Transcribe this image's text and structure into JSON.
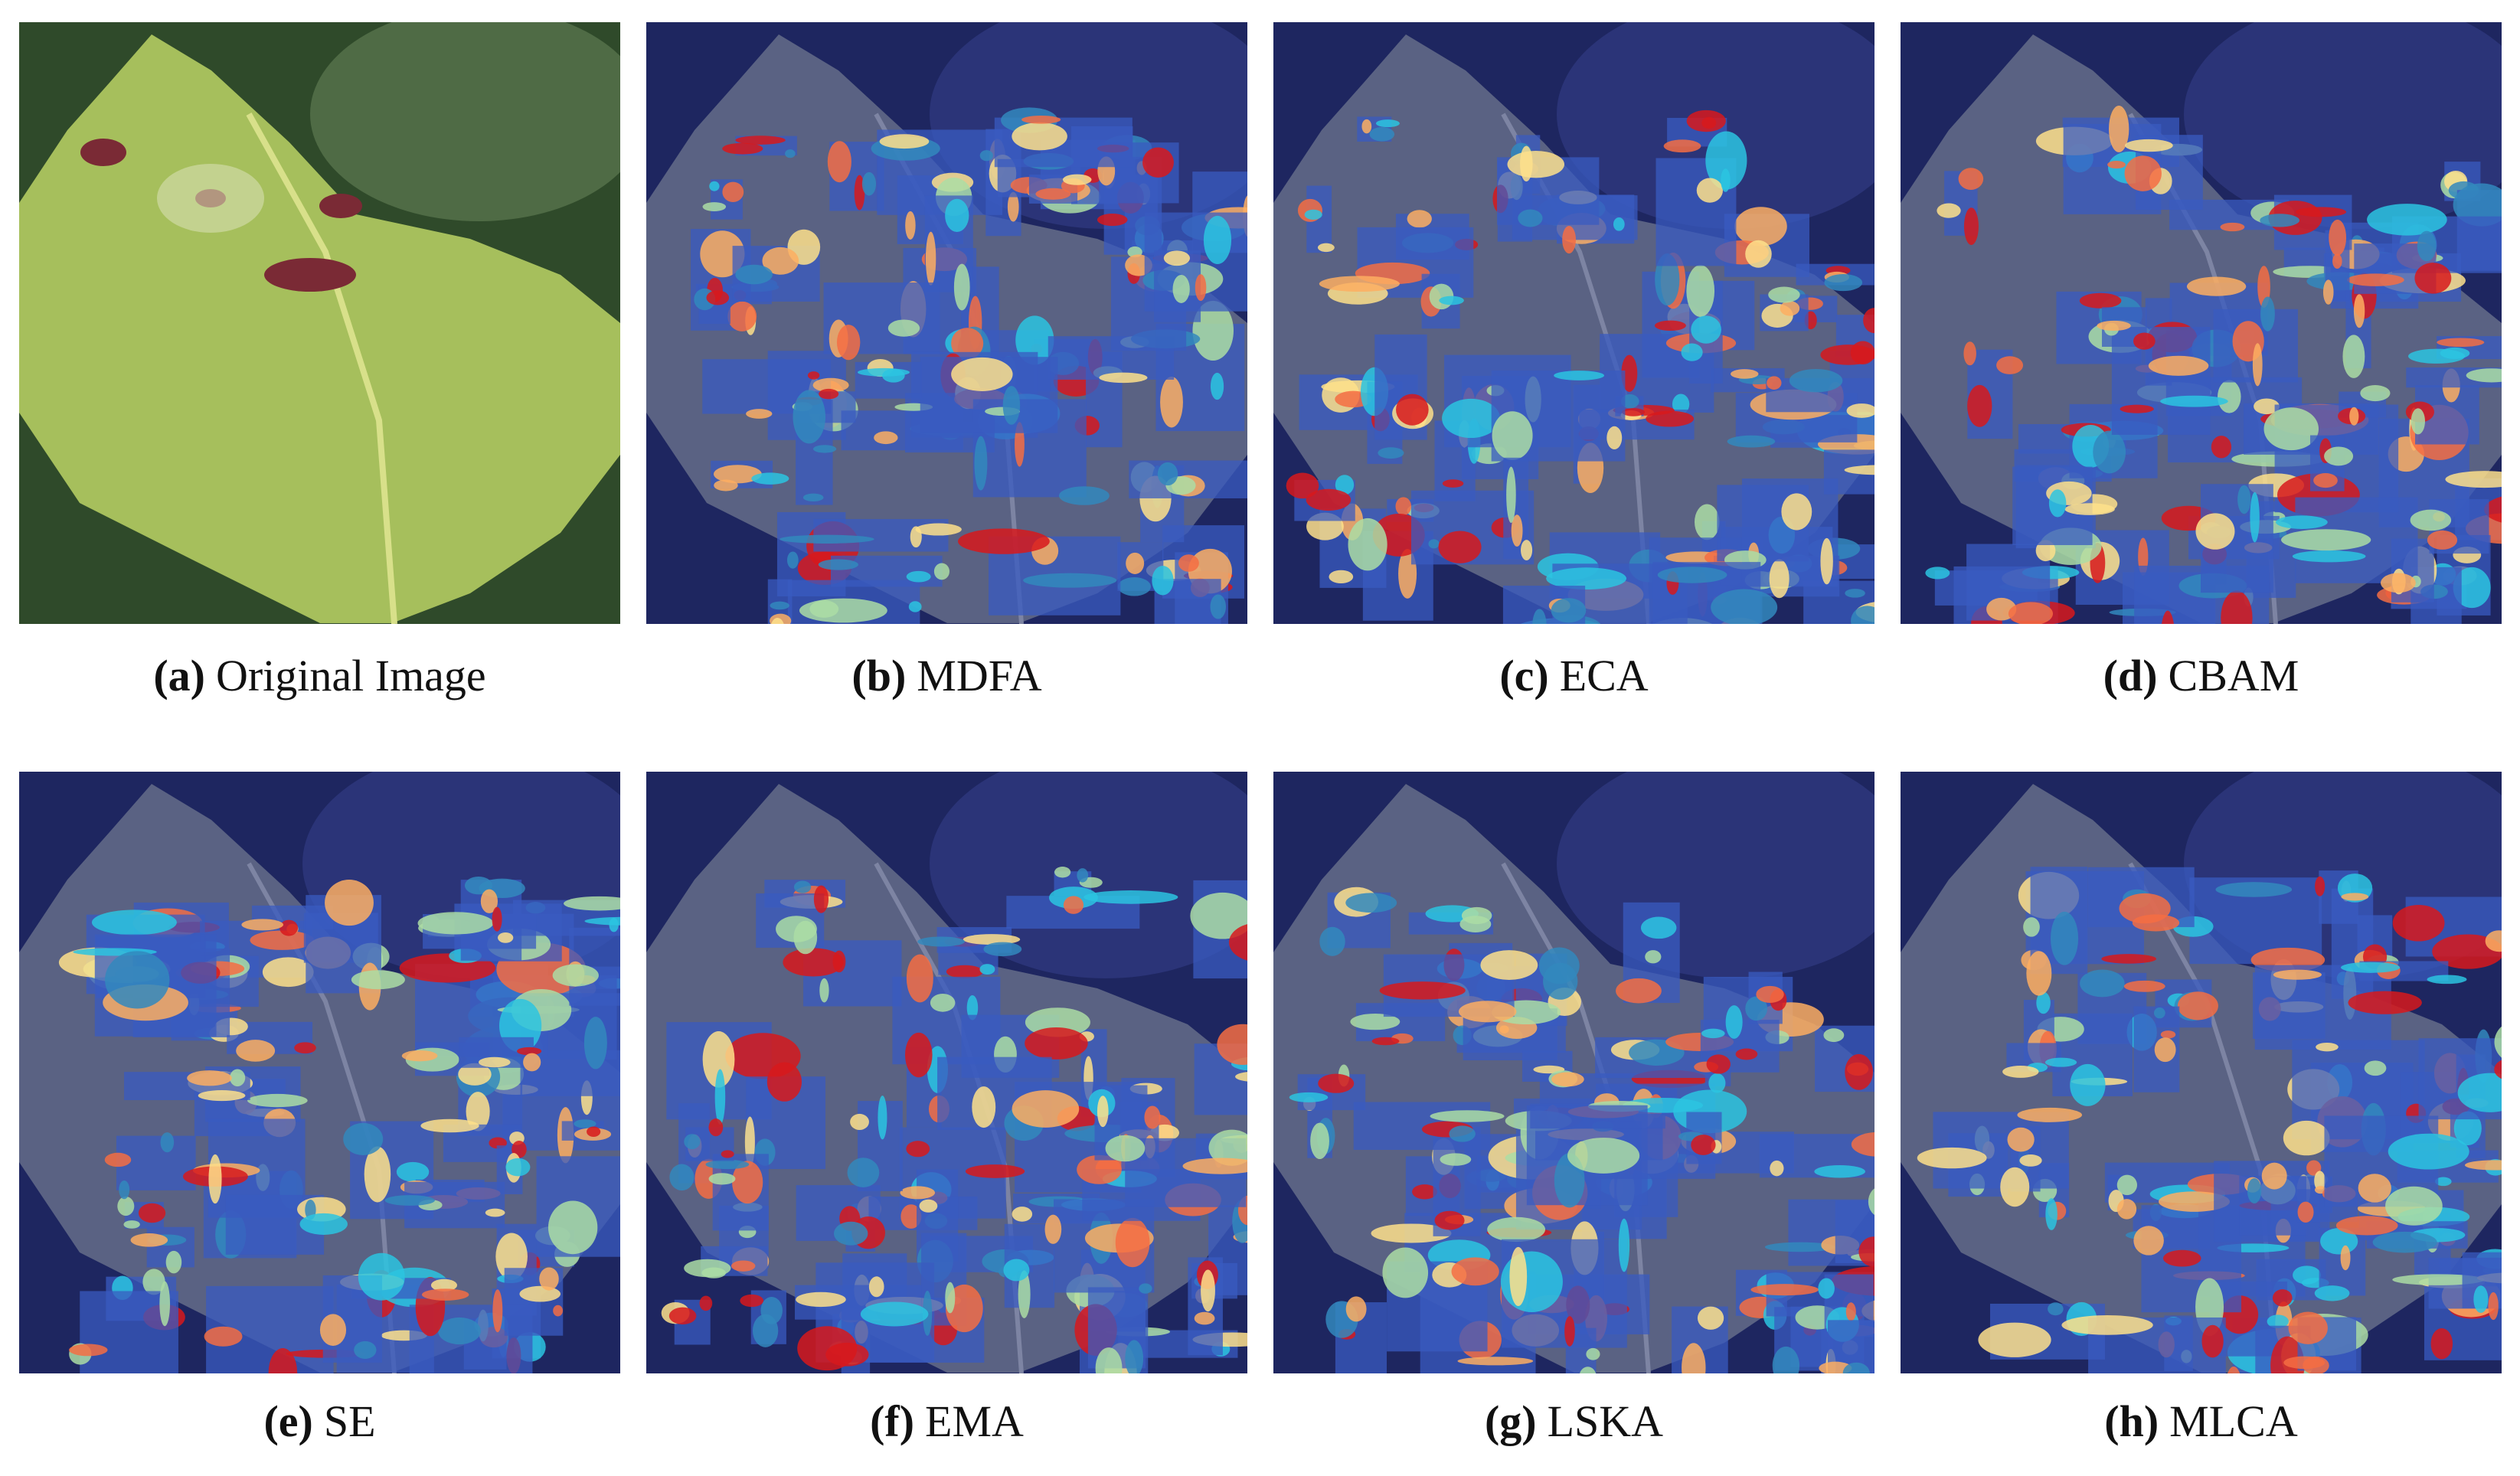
{
  "figure": {
    "panels": [
      {
        "label": "(a)",
        "caption": "Original Image"
      },
      {
        "label": "(b)",
        "caption": "MDFA"
      },
      {
        "label": "(c)",
        "caption": "ECA"
      },
      {
        "label": "(d)",
        "caption": "CBAM"
      },
      {
        "label": "(e)",
        "caption": "SE"
      },
      {
        "label": "(f)",
        "caption": "EMA"
      },
      {
        "label": "(g)",
        "caption": "LSKA"
      },
      {
        "label": "(h)",
        "caption": "MLCA"
      }
    ]
  }
}
